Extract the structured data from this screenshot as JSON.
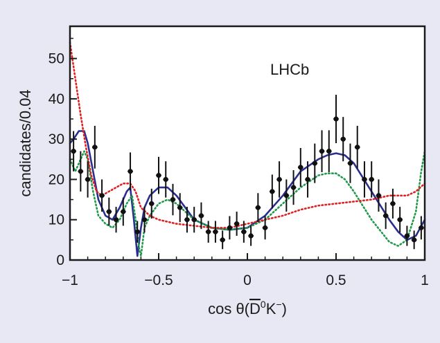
{
  "chart_data": {
    "type": "scatter",
    "title": "",
    "annotation": "LHCb",
    "xlabel": "cos θ(D̄⁰K⁻)",
    "xlabel_parts": {
      "prefix": "cos θ(",
      "overline": "D",
      "sup": "0",
      "mid": "K",
      "sup2": "−",
      "suffix": ")"
    },
    "ylabel": "candidates/0.04",
    "xlim": [
      -1,
      1
    ],
    "ylim": [
      0,
      58
    ],
    "xticks": [
      -1,
      -0.5,
      0,
      0.5,
      1
    ],
    "xtick_labels": [
      "−1",
      "−0.5",
      "0",
      "0.5",
      "1"
    ],
    "yticks": [
      0,
      10,
      20,
      30,
      40,
      50
    ],
    "ytick_labels": [
      "0",
      "10",
      "20",
      "30",
      "40",
      "50"
    ],
    "grid": false,
    "colors": {
      "data": "#111111",
      "blue": "#2a2f8f",
      "green": "#1f9a4a",
      "red": "#e02020",
      "background": "#e8e8f4",
      "plot_bg": "#ffffff"
    },
    "data_points": [
      {
        "x": -0.98,
        "y": 27,
        "err": 5
      },
      {
        "x": -0.94,
        "y": 22,
        "err": 5
      },
      {
        "x": -0.9,
        "y": 20,
        "err": 4.5
      },
      {
        "x": -0.86,
        "y": 28,
        "err": 5.3
      },
      {
        "x": -0.82,
        "y": 16,
        "err": 4
      },
      {
        "x": -0.78,
        "y": 12,
        "err": 3.5
      },
      {
        "x": -0.74,
        "y": 10,
        "err": 3.2
      },
      {
        "x": -0.7,
        "y": 12,
        "err": 3.5
      },
      {
        "x": -0.66,
        "y": 22,
        "err": 4.7
      },
      {
        "x": -0.62,
        "y": 7,
        "err": 2.7
      },
      {
        "x": -0.58,
        "y": 10,
        "err": 3.2
      },
      {
        "x": -0.54,
        "y": 14,
        "err": 3.7
      },
      {
        "x": -0.5,
        "y": 21,
        "err": 4.6
      },
      {
        "x": -0.46,
        "y": 20,
        "err": 4.5
      },
      {
        "x": -0.42,
        "y": 15,
        "err": 3.9
      },
      {
        "x": -0.38,
        "y": 13,
        "err": 3.6
      },
      {
        "x": -0.34,
        "y": 10,
        "err": 3.2
      },
      {
        "x": -0.3,
        "y": 10,
        "err": 3.2
      },
      {
        "x": -0.26,
        "y": 11,
        "err": 3.3
      },
      {
        "x": -0.22,
        "y": 7,
        "err": 2.7
      },
      {
        "x": -0.18,
        "y": 7,
        "err": 2.7
      },
      {
        "x": -0.14,
        "y": 5,
        "err": 2.3
      },
      {
        "x": -0.1,
        "y": 8,
        "err": 2.9
      },
      {
        "x": -0.06,
        "y": 9,
        "err": 3
      },
      {
        "x": -0.02,
        "y": 7,
        "err": 2.7
      },
      {
        "x": 0.02,
        "y": 6,
        "err": 2.5
      },
      {
        "x": 0.06,
        "y": 13,
        "err": 3.6
      },
      {
        "x": 0.1,
        "y": 8,
        "err": 2.9
      },
      {
        "x": 0.14,
        "y": 17,
        "err": 4.2
      },
      {
        "x": 0.18,
        "y": 20,
        "err": 4.5
      },
      {
        "x": 0.22,
        "y": 16,
        "err": 4
      },
      {
        "x": 0.26,
        "y": 18,
        "err": 4.3
      },
      {
        "x": 0.3,
        "y": 23,
        "err": 4.8
      },
      {
        "x": 0.34,
        "y": 20,
        "err": 4.5
      },
      {
        "x": 0.38,
        "y": 24,
        "err": 4.9
      },
      {
        "x": 0.42,
        "y": 27,
        "err": 5.2
      },
      {
        "x": 0.46,
        "y": 27,
        "err": 5.2
      },
      {
        "x": 0.5,
        "y": 35,
        "err": 6
      },
      {
        "x": 0.54,
        "y": 30,
        "err": 5.5
      },
      {
        "x": 0.58,
        "y": 24,
        "err": 4.9
      },
      {
        "x": 0.62,
        "y": 28,
        "err": 5.3
      },
      {
        "x": 0.66,
        "y": 20,
        "err": 4.5
      },
      {
        "x": 0.7,
        "y": 20,
        "err": 4.5
      },
      {
        "x": 0.74,
        "y": 16,
        "err": 4
      },
      {
        "x": 0.78,
        "y": 11,
        "err": 3.3
      },
      {
        "x": 0.82,
        "y": 14,
        "err": 3.7
      },
      {
        "x": 0.86,
        "y": 10,
        "err": 3.2
      },
      {
        "x": 0.9,
        "y": 6,
        "err": 2.5
      },
      {
        "x": 0.94,
        "y": 5,
        "err": 2.3
      },
      {
        "x": 0.98,
        "y": 8,
        "err": 2.9
      }
    ],
    "series": [
      {
        "style": "solid",
        "color": "#2a2f8f",
        "x": [
          -1,
          -0.98,
          -0.95,
          -0.92,
          -0.9,
          -0.87,
          -0.84,
          -0.8,
          -0.76,
          -0.72,
          -0.68,
          -0.66,
          -0.64,
          -0.62,
          -0.6,
          -0.58,
          -0.55,
          -0.5,
          -0.45,
          -0.4,
          -0.35,
          -0.3,
          -0.2,
          -0.1,
          0,
          0.1,
          0.2,
          0.3,
          0.4,
          0.45,
          0.5,
          0.55,
          0.6,
          0.7,
          0.8,
          0.85,
          0.9,
          0.95,
          1
        ],
        "y": [
          29,
          30,
          32,
          32,
          29,
          22,
          15,
          11,
          10,
          13,
          17,
          18,
          10,
          1,
          8,
          13,
          16,
          18,
          18,
          16,
          13,
          10,
          8,
          7.5,
          8,
          11,
          16,
          22,
          25,
          26,
          26.5,
          26,
          24,
          17,
          10,
          7,
          5,
          6,
          10
        ]
      },
      {
        "style": "dotted",
        "color": "#1f9a4a",
        "x": [
          -1,
          -0.97,
          -0.94,
          -0.92,
          -0.9,
          -0.87,
          -0.84,
          -0.8,
          -0.76,
          -0.72,
          -0.68,
          -0.65,
          -0.63,
          -0.61,
          -0.6,
          -0.58,
          -0.55,
          -0.5,
          -0.45,
          -0.4,
          -0.35,
          -0.3,
          -0.2,
          -0.1,
          0,
          0.1,
          0.2,
          0.3,
          0.4,
          0.45,
          0.5,
          0.55,
          0.6,
          0.7,
          0.8,
          0.85,
          0.9,
          0.95,
          0.98,
          1
        ],
        "y": [
          25,
          22,
          25,
          27,
          25,
          17,
          11,
          9,
          8,
          10,
          14,
          16,
          10,
          3,
          1,
          8,
          11,
          14,
          15,
          14,
          12,
          10,
          8,
          7.5,
          8,
          10,
          14,
          18,
          21,
          21.5,
          21.5,
          20,
          17,
          10,
          4.5,
          3.5,
          5,
          12,
          22,
          27
        ]
      },
      {
        "style": "dotted",
        "color": "#e02020",
        "x": [
          -1,
          -0.97,
          -0.94,
          -0.91,
          -0.88,
          -0.85,
          -0.82,
          -0.78,
          -0.74,
          -0.7,
          -0.66,
          -0.63,
          -0.6,
          -0.55,
          -0.5,
          -0.4,
          -0.3,
          -0.2,
          -0.1,
          0,
          0.1,
          0.2,
          0.3,
          0.4,
          0.5,
          0.6,
          0.7,
          0.8,
          0.9,
          0.95,
          1
        ],
        "y": [
          54,
          45,
          36,
          28,
          21,
          17,
          16,
          17,
          18,
          19,
          19,
          17,
          13,
          11,
          10,
          9,
          8.5,
          8,
          8,
          9,
          10,
          11,
          12.5,
          13.5,
          14,
          14.5,
          15,
          16,
          16,
          17,
          19
        ]
      }
    ]
  }
}
